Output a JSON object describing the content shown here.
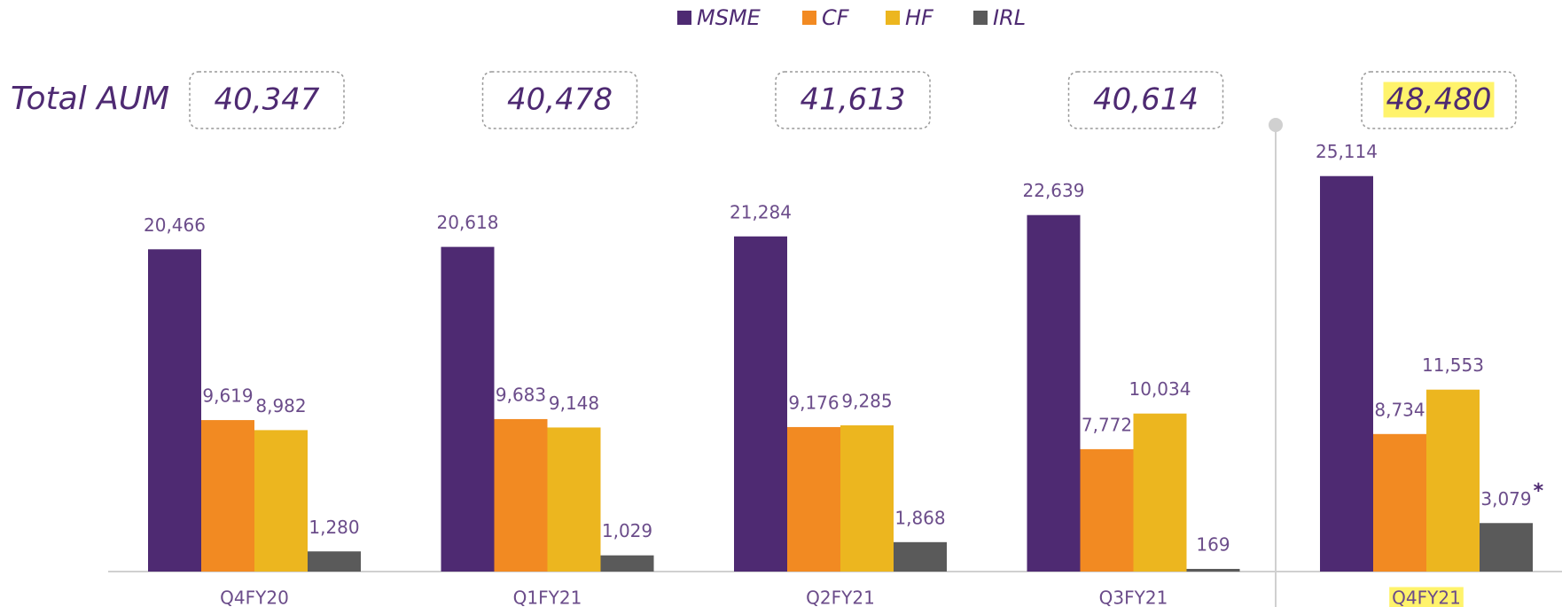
{
  "chart_data": {
    "type": "bar",
    "categories": [
      "Q4FY20",
      "Q1FY21",
      "Q2FY21",
      "Q3FY21",
      "Q4FY21"
    ],
    "series": [
      {
        "name": "MSME",
        "color": "#4e2a72",
        "values": [
          20466,
          20618,
          21284,
          22639,
          25114
        ],
        "value_labels": [
          "20,466",
          "20,618",
          "21,284",
          "22,639",
          "25,114"
        ]
      },
      {
        "name": "CF",
        "color": "#f28a22",
        "values": [
          9619,
          9683,
          9176,
          7772,
          8734
        ],
        "value_labels": [
          "9,619",
          "9,683",
          "9,176",
          "7,772",
          "8,734"
        ]
      },
      {
        "name": "HF",
        "color": "#ecb61f",
        "values": [
          8982,
          9148,
          9285,
          10034,
          11553
        ],
        "value_labels": [
          "8,982",
          "9,148",
          "9,285",
          "10,034",
          "11,553"
        ]
      },
      {
        "name": "IRL",
        "color": "#5a5a5a",
        "values": [
          1280,
          1029,
          1868,
          169,
          3079
        ],
        "value_labels": [
          "1,280",
          "1,029",
          "1,868",
          "169",
          "3,079"
        ]
      }
    ],
    "totals": {
      "label": "Total AUM",
      "values": [
        40347,
        40478,
        41613,
        40614,
        48480
      ],
      "value_labels": [
        "40,347",
        "40,478",
        "41,613",
        "40,614",
        "48,480"
      ]
    },
    "annotations": [
      {
        "text": "*"
      }
    ],
    "ylim": [
      0,
      28000
    ],
    "legend": "top"
  }
}
